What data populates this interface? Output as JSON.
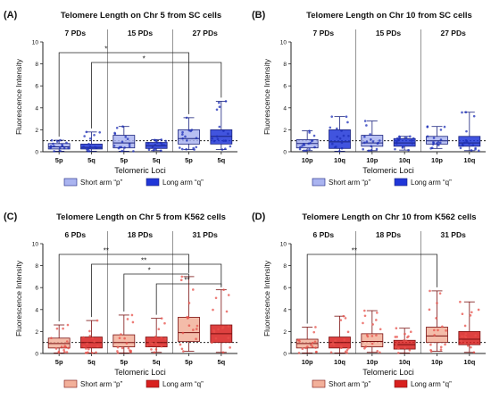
{
  "chart_data": [
    {
      "type": "box",
      "panel_label": "(A)",
      "title": "Telomere Length on Chr 5 from SC cells",
      "ylabel": "Fluorescence Intensity",
      "xlabel": "Telomeric Loci",
      "ylim": [
        0,
        10
      ],
      "yticks": [
        0,
        2,
        4,
        6,
        8,
        10
      ],
      "reference_line": 1,
      "groups": [
        "7 PDs",
        "15 PDs",
        "27 PDs"
      ],
      "categories": [
        "5p",
        "5q",
        "5p",
        "5q",
        "5p",
        "5q"
      ],
      "arm": [
        "p",
        "q",
        "p",
        "q",
        "p",
        "q"
      ],
      "box_stats": [
        {
          "min": 0.05,
          "q1": 0.25,
          "median": 0.45,
          "q3": 0.75,
          "max": 1.05
        },
        {
          "min": 0.05,
          "q1": 0.25,
          "median": 0.4,
          "q3": 0.7,
          "max": 1.8
        },
        {
          "min": 0.05,
          "q1": 0.35,
          "median": 0.8,
          "q3": 1.5,
          "max": 2.3
        },
        {
          "min": 0.1,
          "q1": 0.3,
          "median": 0.55,
          "q3": 0.85,
          "max": 1.1
        },
        {
          "min": 0.2,
          "q1": 0.7,
          "median": 1.2,
          "q3": 2.0,
          "max": 3.1
        },
        {
          "min": 0.2,
          "q1": 0.7,
          "median": 1.4,
          "q3": 2.0,
          "max": 4.6
        }
      ],
      "significance": [
        {
          "from": 0,
          "to": 4,
          "label": "*"
        },
        {
          "from": 1,
          "to": 5,
          "label": "*"
        }
      ],
      "legend": [
        {
          "arm": "p",
          "label": "Short arm “p”"
        },
        {
          "arm": "q",
          "label": "Long arm “q”"
        }
      ],
      "colors": {
        "p": "#aab4f0",
        "q": "#2036d8",
        "edge": "#1a237e",
        "point": "#1e2fb8"
      }
    },
    {
      "type": "box",
      "panel_label": "(B)",
      "title": "Telomere Length on Chr 10 from SC cells",
      "ylabel": "Fluorescence Intensity",
      "xlabel": "Telomeric Loci",
      "ylim": [
        0,
        10
      ],
      "yticks": [
        0,
        2,
        4,
        6,
        8,
        10
      ],
      "reference_line": 1,
      "groups": [
        "7 PDs",
        "15 PDs",
        "27 PDs"
      ],
      "categories": [
        "10p",
        "10q",
        "10p",
        "10q",
        "10p",
        "10q"
      ],
      "arm": [
        "p",
        "q",
        "p",
        "q",
        "p",
        "q"
      ],
      "box_stats": [
        {
          "min": 0.1,
          "q1": 0.35,
          "median": 0.75,
          "q3": 1.1,
          "max": 1.9
        },
        {
          "min": 0.05,
          "q1": 0.3,
          "median": 0.9,
          "q3": 2.0,
          "max": 3.2
        },
        {
          "min": 0.1,
          "q1": 0.5,
          "median": 0.8,
          "q3": 1.5,
          "max": 2.8
        },
        {
          "min": 0.15,
          "q1": 0.5,
          "median": 0.8,
          "q3": 1.2,
          "max": 1.4
        },
        {
          "min": 0.3,
          "q1": 0.7,
          "median": 1.0,
          "q3": 1.4,
          "max": 2.3
        },
        {
          "min": 0.1,
          "q1": 0.5,
          "median": 0.8,
          "q3": 1.4,
          "max": 3.6
        }
      ],
      "significance": [],
      "legend": [
        {
          "arm": "p",
          "label": "Short arm “p”"
        },
        {
          "arm": "q",
          "label": "Long arm “q”"
        }
      ],
      "colors": {
        "p": "#aab4f0",
        "q": "#2036d8",
        "edge": "#1a237e",
        "point": "#1e2fb8"
      }
    },
    {
      "type": "box",
      "panel_label": "(C)",
      "title": "Telomere Length on Chr 5 from K562 cells",
      "ylabel": "Fluorescence Intensity",
      "xlabel": "Telomeric Loci",
      "ylim": [
        0,
        10
      ],
      "yticks": [
        0,
        2,
        4,
        6,
        8,
        10
      ],
      "reference_line": 1,
      "groups": [
        "6 PDs",
        "18 PDs",
        "31 PDs"
      ],
      "categories": [
        "5p",
        "5q",
        "5p",
        "5q",
        "5p",
        "5q"
      ],
      "arm": [
        "p",
        "q",
        "p",
        "q",
        "p",
        "q"
      ],
      "box_stats": [
        {
          "min": 0.05,
          "q1": 0.5,
          "median": 0.9,
          "q3": 1.4,
          "max": 2.6
        },
        {
          "min": 0.05,
          "q1": 0.5,
          "median": 1.0,
          "q3": 1.5,
          "max": 3.0
        },
        {
          "min": 0.05,
          "q1": 0.6,
          "median": 1.0,
          "q3": 1.7,
          "max": 3.5
        },
        {
          "min": 0.1,
          "q1": 0.6,
          "median": 1.0,
          "q3": 1.5,
          "max": 3.2
        },
        {
          "min": 0.2,
          "q1": 1.1,
          "median": 1.9,
          "q3": 3.3,
          "max": 7.0
        },
        {
          "min": 0.1,
          "q1": 1.0,
          "median": 1.8,
          "q3": 2.6,
          "max": 5.8
        }
      ],
      "significance": [
        {
          "from": 0,
          "to": 4,
          "label": "**"
        },
        {
          "from": 1,
          "to": 5,
          "label": "**"
        },
        {
          "from": 2,
          "to": 4,
          "label": "*"
        },
        {
          "from": 3,
          "to": 5,
          "label": "**"
        }
      ],
      "legend": [
        {
          "arm": "p",
          "label": "Short arm “p”"
        },
        {
          "arm": "q",
          "label": "Long arm “q”"
        }
      ],
      "colors": {
        "p": "#f2b09a",
        "q": "#d8201e",
        "edge": "#7a1010",
        "point": "#e8504a"
      }
    },
    {
      "type": "box",
      "panel_label": "(D)",
      "title": "Telomere Length on Chr 10 from K562 cells",
      "ylabel": "Fluorescence Intensity",
      "xlabel": "Telomeric Loci",
      "ylim": [
        0,
        10
      ],
      "yticks": [
        0,
        2,
        4,
        6,
        8,
        10
      ],
      "reference_line": 1,
      "groups": [
        "6 PDs",
        "18 PDs",
        "31 PDs"
      ],
      "categories": [
        "10p",
        "10q",
        "10p",
        "10q",
        "10p",
        "10q"
      ],
      "arm": [
        "p",
        "q",
        "p",
        "q",
        "p",
        "q"
      ],
      "box_stats": [
        {
          "min": 0.05,
          "q1": 0.5,
          "median": 0.9,
          "q3": 1.3,
          "max": 2.4
        },
        {
          "min": 0.05,
          "q1": 0.5,
          "median": 1.0,
          "q3": 1.5,
          "max": 3.4
        },
        {
          "min": 0.1,
          "q1": 0.6,
          "median": 1.1,
          "q3": 1.8,
          "max": 3.9
        },
        {
          "min": 0.05,
          "q1": 0.4,
          "median": 0.8,
          "q3": 1.2,
          "max": 2.3
        },
        {
          "min": 0.2,
          "q1": 1.0,
          "median": 1.6,
          "q3": 2.4,
          "max": 5.7
        },
        {
          "min": 0.1,
          "q1": 0.8,
          "median": 1.3,
          "q3": 2.0,
          "max": 4.7
        }
      ],
      "significance": [
        {
          "from": 0,
          "to": 4,
          "label": "**"
        }
      ],
      "legend": [
        {
          "arm": "p",
          "label": "Short arm “p”"
        },
        {
          "arm": "q",
          "label": "Long arm “q”"
        }
      ],
      "colors": {
        "p": "#f2b09a",
        "q": "#d8201e",
        "edge": "#7a1010",
        "point": "#e8504a"
      }
    }
  ]
}
